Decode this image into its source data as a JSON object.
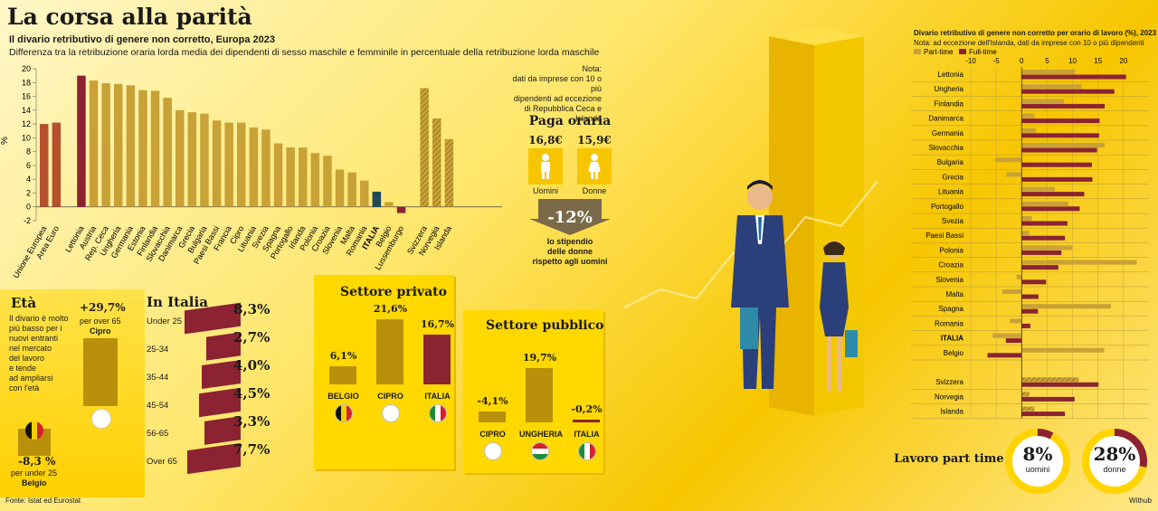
{
  "header": {
    "title": "La corsa alla parità",
    "subtitle": "Il divario retributivo di genere non corretto, Europa 2023",
    "description": "Differenza tra la retribuzione oraria lorda media dei dipendenti di sesso maschile e femminile in percentuale della retribuzione lorda maschile"
  },
  "note": {
    "label": "Nota:",
    "text1": "dati da imprese con 10 o più",
    "text2": "dipendenti ad eccezione",
    "text3": "di Repubblica Ceca e Islanda"
  },
  "chart_data": [
    {
      "type": "bar",
      "ylabel": "%",
      "ylim": [
        -2,
        20
      ],
      "yticks": [
        -2,
        0,
        2,
        4,
        6,
        8,
        10,
        12,
        14,
        16,
        18,
        20
      ],
      "categories": [
        "Unione Europea",
        "Area Euro",
        "Lettonia",
        "Austria",
        "Rep. Ceca",
        "Ungheria",
        "Germania",
        "Estonia",
        "Finlandia",
        "Slovacchia",
        "Danimarca",
        "Grecia",
        "Bulgaria",
        "Paesi Bassi",
        "Francia",
        "Cipro",
        "Lituania",
        "Svezia",
        "Spagna",
        "Portogallo",
        "Irlanda",
        "Polonia",
        "Croazia",
        "Slovenia",
        "Malta",
        "Romania",
        "ITALIA",
        "Belgio",
        "Lussemburgo",
        "Svizzera",
        "Norvegia",
        "Islanda"
      ],
      "values": [
        12.0,
        12.2,
        19.0,
        18.3,
        17.9,
        17.8,
        17.6,
        16.9,
        16.8,
        15.8,
        14.0,
        13.7,
        13.5,
        12.5,
        12.2,
        12.2,
        11.5,
        11.2,
        9.2,
        8.6,
        8.6,
        7.8,
        7.4,
        5.4,
        5.0,
        3.8,
        2.2,
        0.7,
        -0.9,
        17.2,
        12.8,
        9.8
      ],
      "colors": [
        "#b5502c",
        "#b5502c",
        "#8b2332",
        "#c8a236",
        "#c8a236",
        "#c8a236",
        "#c8a236",
        "#c8a236",
        "#c8a236",
        "#c8a236",
        "#c8a236",
        "#c8a236",
        "#c8a236",
        "#c8a236",
        "#c8a236",
        "#c8a236",
        "#c8a236",
        "#c8a236",
        "#c8a236",
        "#c8a236",
        "#c8a236",
        "#c8a236",
        "#c8a236",
        "#c8a236",
        "#c8a236",
        "#c8a236",
        "#1e4a5a",
        "#c8a236",
        "#8b2332",
        "#b08a3a",
        "#b08a3a",
        "#b08a3a"
      ]
    },
    {
      "type": "bar",
      "title": "Divario retributivo di genere non corretto per orario di lavoro (%), 2023",
      "subtitle": "Nota: ad eccezione dell'Islanda, dati da imprese con 10 o più dipendenti",
      "xlim": [
        -10,
        25
      ],
      "xticks": [
        -10,
        -5,
        0,
        5,
        10,
        15,
        20
      ],
      "legend": [
        "Part-time",
        "Full-time"
      ],
      "legend_colors": [
        "#c8a236",
        "#8b2332"
      ],
      "categories": [
        "Lettonia",
        "Ungheria",
        "Finlandia",
        "Danimarca",
        "Germania",
        "Slovacchia",
        "Bulgaria",
        "Grecia",
        "Lituania",
        "Portogallo",
        "Svezia",
        "Paesi Bassi",
        "Polonia",
        "Croazia",
        "Slovenia",
        "Malta",
        "Spagna",
        "Romania",
        "ITALIA",
        "Belgio",
        "Svizzera",
        "Norvegia",
        "Islanda"
      ],
      "series": [
        {
          "name": "Part-time",
          "values": [
            10.5,
            11.8,
            8.3,
            2.5,
            2.8,
            16.3,
            -5.2,
            -3.0,
            6.5,
            9.2,
            2.0,
            1.5,
            10.0,
            22.6,
            -1.0,
            -3.8,
            17.5,
            -2.3,
            -5.7,
            16.2,
            11.2,
            1.5,
            2.5
          ]
        },
        {
          "name": "Full-time",
          "values": [
            20.5,
            18.2,
            16.3,
            15.3,
            15.2,
            14.8,
            13.8,
            13.9,
            12.3,
            11.4,
            9.0,
            8.5,
            7.8,
            7.2,
            4.8,
            3.3,
            3.2,
            1.7,
            -3.1,
            -6.7,
            15.1,
            10.4,
            8.5
          ]
        }
      ]
    }
  ],
  "paga": {
    "title": "Paga oraria",
    "men_value": "16,8€",
    "women_value": "15,9€",
    "men_label": "Uomini",
    "women_label": "Donne",
    "gap": "-12%",
    "gap_text1": "lo stipendio",
    "gap_text2": "delle donne",
    "gap_text3": "rispetto agli uomini"
  },
  "eta": {
    "title": "Età",
    "text": [
      "Il divario è molto",
      "più basso per i",
      "nuovi entranti",
      "nel mercato",
      "del lavoro",
      "e tende",
      "ad ampliarsi",
      "con l'età"
    ],
    "high_value": "+29,7%",
    "high_label": "per over 65",
    "high_country": "Cipro",
    "low_value": "-8,3 %",
    "low_label": "per under 25",
    "low_country": "Belgio"
  },
  "italia_age": {
    "title": "In Italia",
    "rows": [
      {
        "label": "Under 25",
        "value": "8,3%",
        "num": 8.3
      },
      {
        "label": "25-34",
        "value": "2,7%",
        "num": 2.7
      },
      {
        "label": "35-44",
        "value": "4,0%",
        "num": 4.0
      },
      {
        "label": "45-54",
        "value": "4,5%",
        "num": 4.5
      },
      {
        "label": "56-65",
        "value": "3,3%",
        "num": 3.3
      },
      {
        "label": "Over 65",
        "value": "7,7%",
        "num": 7.7
      }
    ]
  },
  "privato": {
    "title": "Settore privato",
    "items": [
      {
        "country": "BELGIO",
        "value": "6,1%"
      },
      {
        "country": "CIPRO",
        "value": "21,6%"
      },
      {
        "country": "ITALIA",
        "value": "16,7%"
      }
    ]
  },
  "pubblico": {
    "title": "Settore pubblico",
    "items": [
      {
        "country": "CIPRO",
        "value": "-4,1%"
      },
      {
        "country": "UNGHERIA",
        "value": "19,7%"
      },
      {
        "country": "ITALIA",
        "value": "-0,2%"
      }
    ]
  },
  "parttime": {
    "title": "Lavoro part time",
    "men_value": "8%",
    "men_label": "uomini",
    "women_value": "28%",
    "women_label": "donne",
    "men_pct": 8,
    "women_pct": 28
  },
  "footer": {
    "source": "Fonte: Istat ed Eurostat",
    "credit": "Withub"
  },
  "colors": {
    "accent_red": "#8b2332",
    "gold": "#c8a236",
    "italy": "#1e4a5a",
    "yellow": "#ffd400"
  }
}
